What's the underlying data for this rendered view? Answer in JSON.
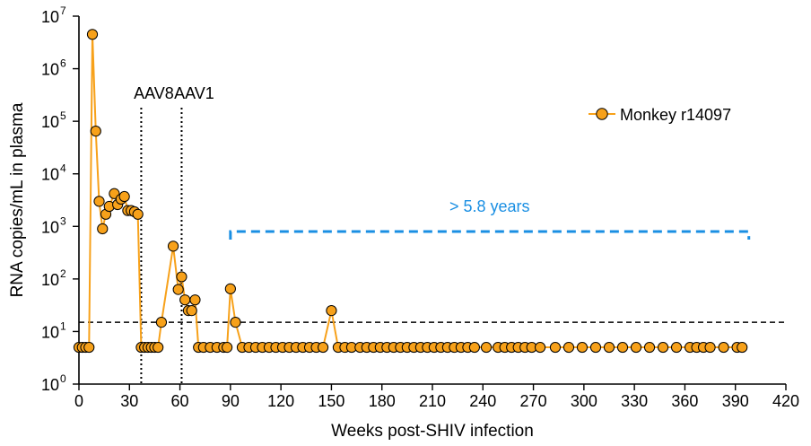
{
  "chart_data": {
    "type": "line",
    "xlabel": "Weeks post-SHIV infection",
    "ylabel": "RNA copies/mL in plasma",
    "xlim": [
      0,
      420
    ],
    "ylim_log10": [
      0,
      7
    ],
    "y_scale": "log",
    "x_ticks": [
      0,
      30,
      60,
      90,
      120,
      150,
      180,
      210,
      240,
      270,
      300,
      330,
      360,
      390,
      420
    ],
    "y_ticks": [
      {
        "base": "10",
        "exp": "0"
      },
      {
        "base": "10",
        "exp": "1"
      },
      {
        "base": "10",
        "exp": "2"
      },
      {
        "base": "10",
        "exp": "3"
      },
      {
        "base": "10",
        "exp": "4"
      },
      {
        "base": "10",
        "exp": "5"
      },
      {
        "base": "10",
        "exp": "6"
      },
      {
        "base": "10",
        "exp": "7"
      }
    ],
    "legend_position": "top-right",
    "series": [
      {
        "name": "Monkey r14097",
        "color": "#F7A11A",
        "x": [
          0,
          2,
          4,
          6,
          8,
          10,
          12,
          14,
          16,
          18,
          21,
          23,
          25,
          27,
          29,
          31,
          33,
          35,
          37,
          39,
          41,
          43,
          45,
          47,
          49,
          56,
          59,
          61,
          63,
          65,
          67,
          69,
          71,
          74,
          78,
          82,
          86,
          88,
          90,
          93,
          97,
          101,
          105,
          109,
          113,
          117,
          121,
          125,
          129,
          133,
          137,
          141,
          145,
          150,
          154,
          158,
          162,
          167,
          171,
          175,
          179,
          183,
          187,
          191,
          195,
          199,
          203,
          207,
          211,
          215,
          219,
          223,
          227,
          231,
          235,
          242,
          249,
          253,
          257,
          261,
          265,
          269,
          274,
          283,
          291,
          299,
          307,
          315,
          323,
          331,
          339,
          347,
          355,
          363,
          367,
          371,
          375,
          383,
          391,
          394
        ],
        "y": [
          5,
          5,
          5,
          5,
          4500000,
          65000,
          3000,
          900,
          1700,
          2400,
          4200,
          2600,
          3300,
          3700,
          2000,
          2000,
          1900,
          1700,
          5,
          5,
          5,
          5,
          5,
          5,
          15,
          420,
          63,
          110,
          40,
          25,
          25,
          40,
          5,
          5,
          5,
          5,
          5,
          5,
          65,
          15,
          5,
          5,
          5,
          5,
          5,
          5,
          5,
          5,
          5,
          5,
          5,
          5,
          5,
          25,
          5,
          5,
          5,
          5,
          5,
          5,
          5,
          5,
          5,
          5,
          5,
          5,
          5,
          5,
          5,
          5,
          5,
          5,
          5,
          5,
          5,
          5,
          5,
          5,
          5,
          5,
          5,
          5,
          5,
          5,
          5,
          5,
          5,
          5,
          5,
          5,
          5,
          5,
          5,
          5,
          5,
          5,
          5,
          5,
          5,
          5
        ]
      }
    ],
    "threshold": {
      "y": 15,
      "style": "dashed",
      "color": "#000000"
    },
    "vlines": [
      {
        "x": 37,
        "label": "AAV8"
      },
      {
        "x": 61,
        "label": "AAV1"
      }
    ],
    "bracket": {
      "x_start": 90,
      "x_end": 398,
      "y": 800,
      "label": "> 5.8 years",
      "color": "#1A8FE3"
    }
  }
}
